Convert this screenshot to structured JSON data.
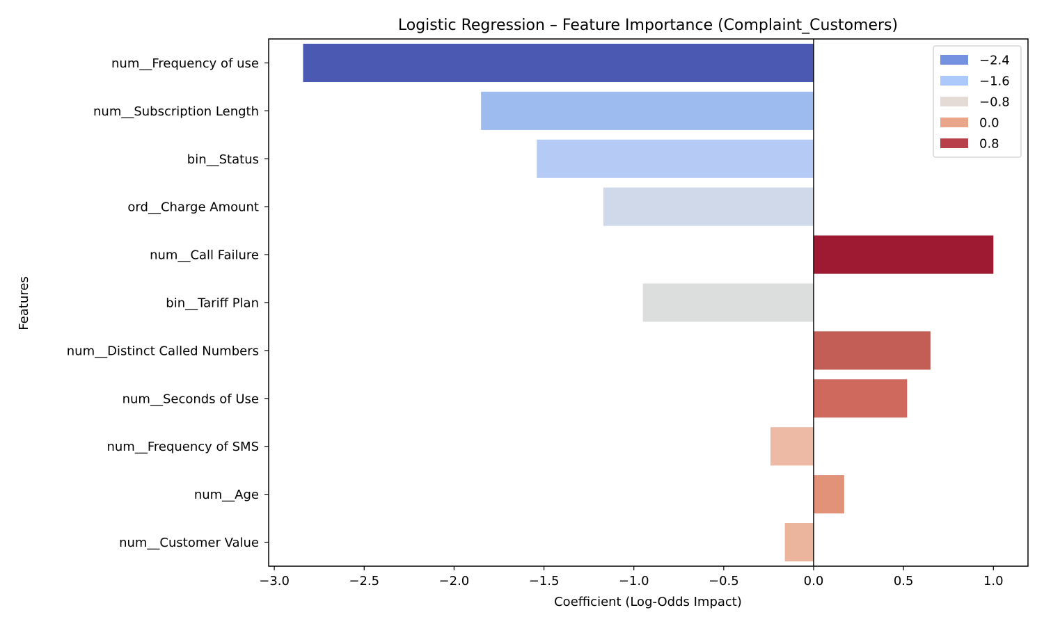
{
  "chart_data": {
    "type": "bar",
    "orientation": "horizontal",
    "title": "Logistic Regression – Feature Importance (Complaint_Customers)",
    "xlabel": "Coefficient (Log-Odds Impact)",
    "ylabel": "Features",
    "xlim": [
      -3.03,
      1.2
    ],
    "xticks": [
      -3.0,
      -2.5,
      -2.0,
      -1.5,
      -1.0,
      -0.5,
      0.0,
      0.5,
      1.0
    ],
    "xtick_labels": [
      "−3.0",
      "−2.5",
      "−2.0",
      "−1.5",
      "−1.0",
      "−0.5",
      "0.0",
      "0.5",
      "1.0"
    ],
    "zero_line": true,
    "grid": false,
    "categories": [
      "num__Frequency of use",
      "num__Subscription Length",
      "bin__Status",
      "ord__Charge Amount",
      "num__Call Failure",
      "bin__Tariff Plan",
      "num__Distinct Called Numbers",
      "num__Seconds of Use",
      "num__Frequency of SMS",
      "num__Age",
      "num__Customer Value"
    ],
    "values": [
      -2.84,
      -1.85,
      -1.54,
      -1.17,
      1.0,
      -0.95,
      0.65,
      0.52,
      -0.24,
      0.17,
      -0.16
    ],
    "bar_colors": [
      "#4b59b2",
      "#9ebbf0",
      "#b5caf5",
      "#cfd9ea",
      "#9e1a33",
      "#dcdddd",
      "#c25e55",
      "#d0695d",
      "#ecbaa5",
      "#e29279",
      "#ebb49d"
    ],
    "legend": {
      "placement": "top-right",
      "entries": [
        {
          "label": "−2.4",
          "color": "#7592e0"
        },
        {
          "label": "−1.6",
          "color": "#adc8fa"
        },
        {
          "label": "−0.8",
          "color": "#e4dbd6"
        },
        {
          "label": "0.0",
          "color": "#eba58a"
        },
        {
          "label": "0.8",
          "color": "#b8404a"
        }
      ]
    }
  }
}
